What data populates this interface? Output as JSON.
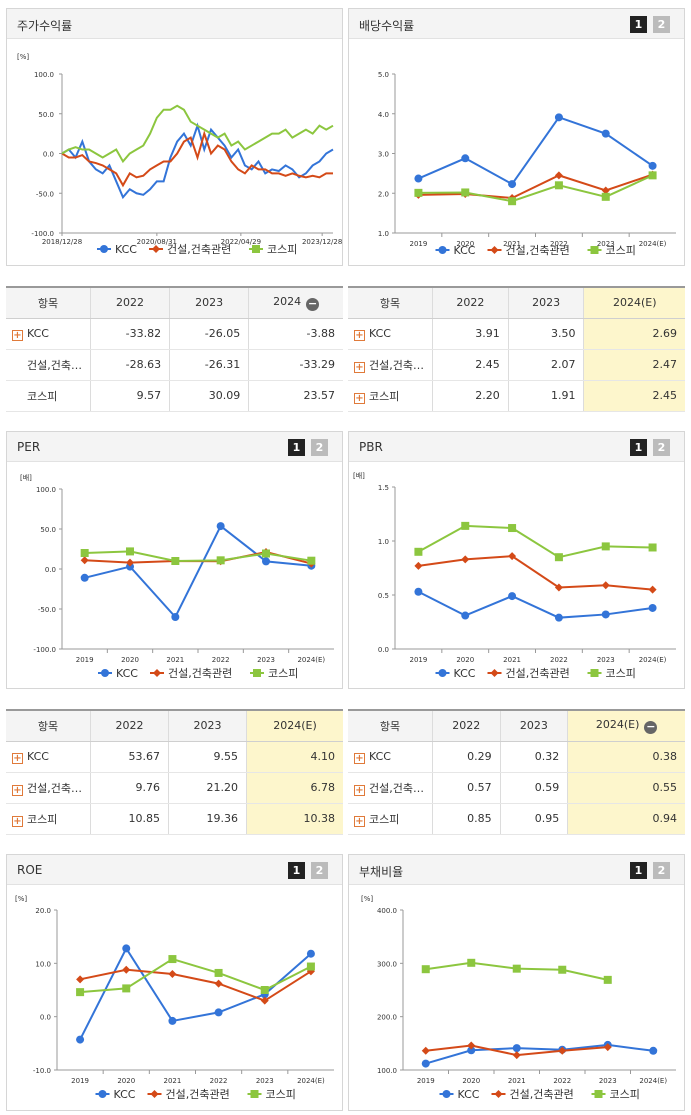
{
  "colors": {
    "kcc": "#3374d8",
    "sector": "#d44a18",
    "kospi": "#8cc63f"
  },
  "legend": [
    "KCC",
    "건설,건축관련",
    "코스피"
  ],
  "page_btn1": "1",
  "page_btn2": "2",
  "panels": {
    "stock": {
      "title": "주가수익률",
      "unit": "[%]",
      "table": {
        "head": "항목",
        "cols": [
          "2022",
          "2023",
          "2024"
        ],
        "rows": [
          {
            "name": "KCC",
            "plus": true,
            "values": [
              "-33.82",
              "-26.05",
              "-3.88"
            ]
          },
          {
            "name": "건설,건축…",
            "plus": false,
            "values": [
              "-28.63",
              "-26.31",
              "-33.29"
            ]
          },
          {
            "name": "코스피",
            "plus": false,
            "values": [
              "9.57",
              "30.09",
              "23.57"
            ]
          }
        ]
      }
    },
    "dividend": {
      "title": "배당수익률",
      "table": {
        "head": "항목",
        "cols": [
          "2022",
          "2023",
          "2024(E)"
        ],
        "rows": [
          {
            "name": "KCC",
            "plus": true,
            "values": [
              "3.91",
              "3.50",
              "2.69"
            ]
          },
          {
            "name": "건설,건축…",
            "plus": true,
            "values": [
              "2.45",
              "2.07",
              "2.47"
            ]
          },
          {
            "name": "코스피",
            "plus": true,
            "values": [
              "2.20",
              "1.91",
              "2.45"
            ]
          }
        ]
      }
    },
    "per": {
      "title": "PER",
      "unit": "[배]",
      "table": {
        "head": "항목",
        "cols": [
          "2022",
          "2023",
          "2024(E)"
        ],
        "rows": [
          {
            "name": "KCC",
            "plus": true,
            "values": [
              "53.67",
              "9.55",
              "4.10"
            ]
          },
          {
            "name": "건설,건축…",
            "plus": true,
            "values": [
              "9.76",
              "21.20",
              "6.78"
            ]
          },
          {
            "name": "코스피",
            "plus": true,
            "values": [
              "10.85",
              "19.36",
              "10.38"
            ]
          }
        ]
      }
    },
    "pbr": {
      "title": "PBR",
      "unit": "[배]",
      "table": {
        "head": "항목",
        "cols": [
          "2022",
          "2023",
          "2024(E)"
        ],
        "rows": [
          {
            "name": "KCC",
            "plus": true,
            "values": [
              "0.29",
              "0.32",
              "0.38"
            ]
          },
          {
            "name": "건설,건축…",
            "plus": true,
            "values": [
              "0.57",
              "0.59",
              "0.55"
            ]
          },
          {
            "name": "코스피",
            "plus": true,
            "values": [
              "0.85",
              "0.95",
              "0.94"
            ]
          }
        ]
      }
    },
    "roe": {
      "title": "ROE",
      "unit": "[%]"
    },
    "debt": {
      "title": "부채비율",
      "unit": "[%]"
    }
  },
  "chart_data": [
    {
      "id": "stock",
      "type": "line",
      "ylabel": "[%]",
      "ylim": [
        -100,
        100
      ],
      "yticks": [
        "100.0",
        "50.0",
        "0.0",
        "-50.0",
        "-100.0"
      ],
      "xticks": [
        "2018/12/28",
        "2020/08/31",
        "2022/04/29",
        "2023/12/28"
      ],
      "x": [
        0,
        3,
        6,
        9,
        12,
        15,
        18,
        21,
        24,
        27,
        30,
        33,
        36,
        39,
        42,
        45,
        48,
        51,
        54,
        57,
        60,
        63,
        66,
        69,
        72,
        75,
        78,
        81,
        84,
        87,
        90,
        93,
        96,
        99,
        102,
        105,
        108,
        111,
        114,
        117,
        120
      ],
      "series": [
        {
          "name": "KCC",
          "values": [
            0,
            5,
            -5,
            15,
            -10,
            -20,
            -25,
            -15,
            -35,
            -55,
            -45,
            -50,
            -52,
            -45,
            -35,
            -35,
            -5,
            15,
            25,
            10,
            35,
            5,
            30,
            20,
            10,
            -5,
            5,
            -15,
            -20,
            -10,
            -25,
            -20,
            -22,
            -15,
            -20,
            -30,
            -25,
            -15,
            -10,
            0,
            5
          ]
        },
        {
          "name": "건설,건축관련",
          "values": [
            0,
            -5,
            -5,
            -2,
            -10,
            -12,
            -15,
            -20,
            -25,
            -40,
            -25,
            -30,
            -28,
            -20,
            -15,
            -10,
            -10,
            0,
            15,
            20,
            -5,
            25,
            0,
            10,
            5,
            -10,
            -20,
            -25,
            -15,
            -20,
            -20,
            -25,
            -25,
            -28,
            -25,
            -28,
            -30,
            -28,
            -30,
            -25,
            -25
          ]
        },
        {
          "name": "코스피",
          "values": [
            0,
            5,
            8,
            5,
            5,
            0,
            -5,
            0,
            5,
            -10,
            0,
            5,
            10,
            25,
            45,
            55,
            55,
            60,
            55,
            40,
            35,
            30,
            25,
            20,
            25,
            10,
            15,
            5,
            10,
            15,
            20,
            25,
            25,
            30,
            20,
            25,
            30,
            25,
            35,
            30,
            35
          ]
        }
      ]
    },
    {
      "id": "dividend",
      "type": "line",
      "ylim": [
        1,
        5
      ],
      "yticks": [
        "5.0",
        "4.0",
        "3.0",
        "2.0",
        "1.0"
      ],
      "categories": [
        "2019",
        "2020",
        "2021",
        "2022",
        "2023",
        "2024(E)"
      ],
      "series": [
        {
          "name": "KCC",
          "values": [
            2.37,
            2.88,
            2.23,
            3.91,
            3.5,
            2.69
          ]
        },
        {
          "name": "건설,건축관련",
          "values": [
            1.96,
            1.98,
            1.88,
            2.45,
            2.07,
            2.47
          ]
        },
        {
          "name": "코스피",
          "values": [
            2.01,
            2.02,
            1.8,
            2.2,
            1.91,
            2.45
          ]
        }
      ]
    },
    {
      "id": "per",
      "type": "line",
      "ylabel": "[배]",
      "ylim": [
        -100,
        100
      ],
      "yticks": [
        "100.0",
        "50.0",
        "0.0",
        "-50.0",
        "-100.0"
      ],
      "categories": [
        "2019",
        "2020",
        "2021",
        "2022",
        "2023",
        "2024(E)"
      ],
      "series": [
        {
          "name": "KCC",
          "values": [
            -11,
            3,
            -60,
            53.67,
            9.55,
            4.1
          ]
        },
        {
          "name": "건설,건축관련",
          "values": [
            11,
            8,
            10,
            9.76,
            21.2,
            6.78
          ]
        },
        {
          "name": "코스피",
          "values": [
            20,
            22,
            10,
            10.85,
            19.36,
            10.38
          ]
        }
      ]
    },
    {
      "id": "pbr",
      "type": "line",
      "ylabel": "[배]",
      "ylim": [
        0,
        1.5
      ],
      "yticks": [
        "1.5",
        "1.0",
        "0.5",
        "0.0"
      ],
      "categories": [
        "2019",
        "2020",
        "2021",
        "2022",
        "2023",
        "2024(E)"
      ],
      "series": [
        {
          "name": "KCC",
          "values": [
            0.53,
            0.31,
            0.49,
            0.29,
            0.32,
            0.38
          ]
        },
        {
          "name": "건설,건축관련",
          "values": [
            0.77,
            0.83,
            0.86,
            0.57,
            0.59,
            0.55
          ]
        },
        {
          "name": "코스피",
          "values": [
            0.9,
            1.14,
            1.12,
            0.85,
            0.95,
            0.94
          ]
        }
      ]
    },
    {
      "id": "roe",
      "type": "line",
      "ylabel": "[%]",
      "ylim": [
        -10,
        20
      ],
      "yticks": [
        "20.0",
        "10.0",
        "0.0",
        "-10.0"
      ],
      "categories": [
        "2019",
        "2020",
        "2021",
        "2022",
        "2023",
        "2024(E)"
      ],
      "series": [
        {
          "name": "KCC",
          "values": [
            -4.3,
            12.8,
            -0.8,
            0.8,
            4.2,
            11.8
          ]
        },
        {
          "name": "건설,건축관련",
          "values": [
            7.0,
            8.8,
            8.0,
            6.2,
            3.0,
            8.5
          ]
        },
        {
          "name": "코스피",
          "values": [
            4.6,
            5.3,
            10.8,
            8.2,
            5.0,
            9.4
          ]
        }
      ]
    },
    {
      "id": "debt",
      "type": "line",
      "ylabel": "[%]",
      "ylim": [
        100,
        400
      ],
      "yticks": [
        "400.0",
        "300.0",
        "200.0",
        "100.0"
      ],
      "categories": [
        "2019",
        "2020",
        "2021",
        "2022",
        "2023",
        "2024(E)"
      ],
      "series": [
        {
          "name": "KCC",
          "values": [
            112,
            137,
            141,
            138,
            147,
            136
          ]
        },
        {
          "name": "건설,건축관련",
          "values": [
            136,
            146,
            128,
            136,
            143,
            null
          ]
        },
        {
          "name": "코스피",
          "values": [
            289,
            301,
            290,
            288,
            269,
            null
          ]
        }
      ]
    }
  ]
}
